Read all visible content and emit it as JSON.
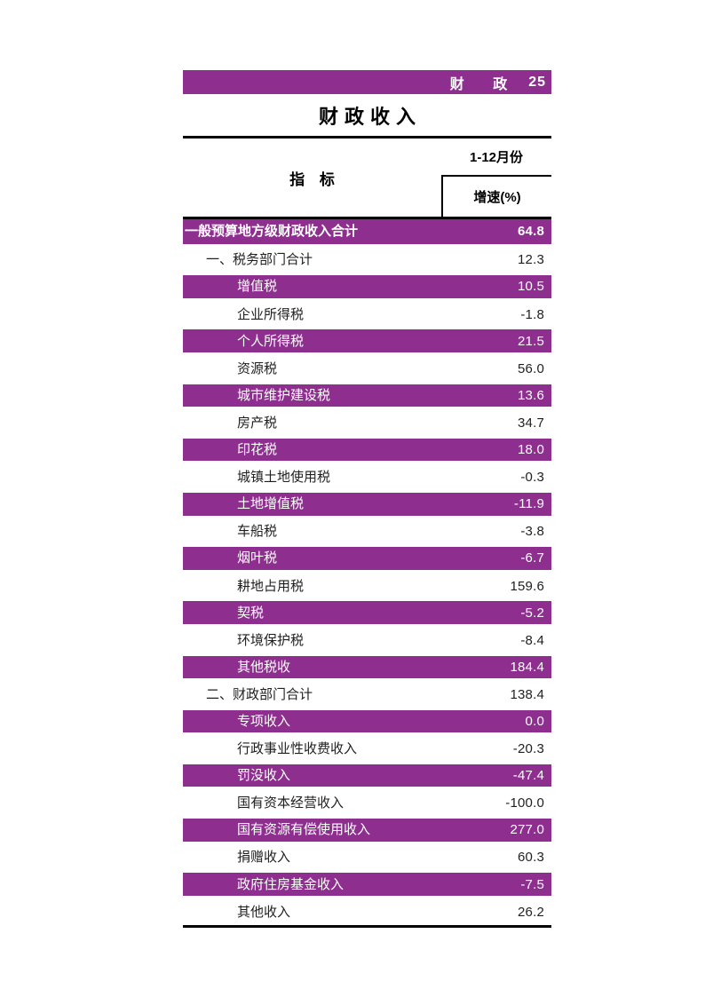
{
  "colors": {
    "accent": "#8e2f90"
  },
  "header_bar": {
    "label": "财 政",
    "page_number": "25"
  },
  "title": "财政收入",
  "table": {
    "indicator_header": "指 标",
    "period_header": "1-12月份",
    "metric_header": "增速(%)",
    "rows": [
      {
        "label": "一般预算地方级财政收入合计",
        "value": "64.8",
        "level": 0,
        "hl": true,
        "bold": true
      },
      {
        "label": "一、税务部门合计",
        "value": "12.3",
        "level": 1,
        "hl": false,
        "bold": false
      },
      {
        "label": "增值税",
        "value": "10.5",
        "level": 2,
        "hl": true,
        "bold": false
      },
      {
        "label": "企业所得税",
        "value": "-1.8",
        "level": 2,
        "hl": false,
        "bold": false
      },
      {
        "label": "个人所得税",
        "value": "21.5",
        "level": 2,
        "hl": true,
        "bold": false
      },
      {
        "label": "资源税",
        "value": "56.0",
        "level": 2,
        "hl": false,
        "bold": false
      },
      {
        "label": "城市维护建设税",
        "value": "13.6",
        "level": 2,
        "hl": true,
        "bold": false
      },
      {
        "label": "房产税",
        "value": "34.7",
        "level": 2,
        "hl": false,
        "bold": false
      },
      {
        "label": "印花税",
        "value": "18.0",
        "level": 2,
        "hl": true,
        "bold": false
      },
      {
        "label": "城镇土地使用税",
        "value": "-0.3",
        "level": 2,
        "hl": false,
        "bold": false
      },
      {
        "label": "土地增值税",
        "value": "-11.9",
        "level": 2,
        "hl": true,
        "bold": false
      },
      {
        "label": "车船税",
        "value": "-3.8",
        "level": 2,
        "hl": false,
        "bold": false
      },
      {
        "label": "烟叶税",
        "value": "-6.7",
        "level": 2,
        "hl": true,
        "bold": false
      },
      {
        "label": "耕地占用税",
        "value": "159.6",
        "level": 2,
        "hl": false,
        "bold": false
      },
      {
        "label": "契税",
        "value": "-5.2",
        "level": 2,
        "hl": true,
        "bold": false
      },
      {
        "label": "环境保护税",
        "value": "-8.4",
        "level": 2,
        "hl": false,
        "bold": false
      },
      {
        "label": "其他税收",
        "value": "184.4",
        "level": 2,
        "hl": true,
        "bold": false
      },
      {
        "label": "二、财政部门合计",
        "value": "138.4",
        "level": 1,
        "hl": false,
        "bold": false
      },
      {
        "label": "专项收入",
        "value": "0.0",
        "level": 2,
        "hl": true,
        "bold": false
      },
      {
        "label": "行政事业性收费收入",
        "value": "-20.3",
        "level": 2,
        "hl": false,
        "bold": false
      },
      {
        "label": "罚没收入",
        "value": "-47.4",
        "level": 2,
        "hl": true,
        "bold": false
      },
      {
        "label": "国有资本经营收入",
        "value": "-100.0",
        "level": 2,
        "hl": false,
        "bold": false
      },
      {
        "label": "国有资源有偿使用收入",
        "value": "277.0",
        "level": 2,
        "hl": true,
        "bold": false
      },
      {
        "label": "捐赠收入",
        "value": "60.3",
        "level": 2,
        "hl": false,
        "bold": false
      },
      {
        "label": "政府住房基金收入",
        "value": "-7.5",
        "level": 2,
        "hl": true,
        "bold": false
      },
      {
        "label": "其他收入",
        "value": "26.2",
        "level": 2,
        "hl": false,
        "bold": false
      }
    ]
  }
}
